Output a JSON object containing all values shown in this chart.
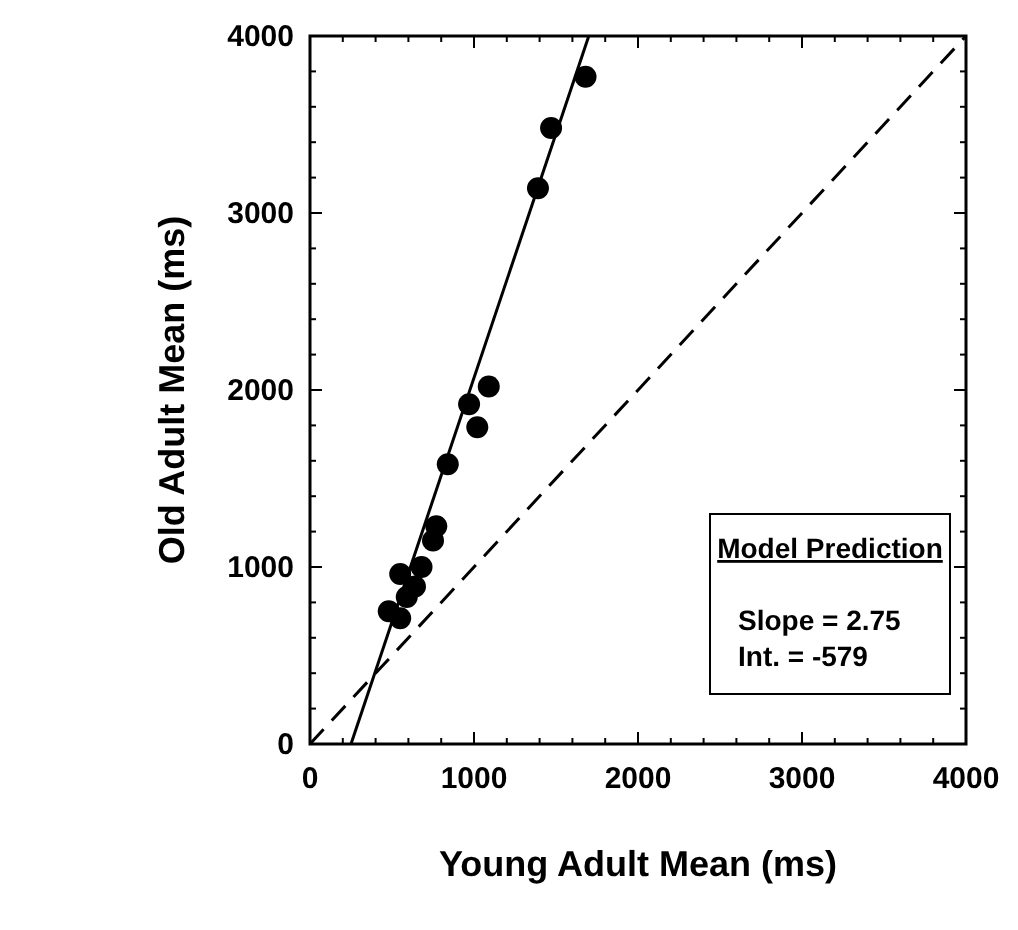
{
  "chart_data": {
    "type": "scatter",
    "xlabel": "Young Adult Mean (ms)",
    "ylabel": "Old Adult Mean (ms)",
    "xlim": [
      0,
      4000
    ],
    "ylim": [
      0,
      4000
    ],
    "xticks": [
      0,
      {
        "value": 200,
        "label": null
      },
      {
        "value": 400,
        "label": null
      },
      {
        "value": 600,
        "label": null
      },
      {
        "value": 800,
        "label": null
      },
      1000,
      {
        "value": 1200,
        "label": null
      },
      {
        "value": 1400,
        "label": null
      },
      {
        "value": 1600,
        "label": null
      },
      {
        "value": 1800,
        "label": null
      },
      2000,
      {
        "value": 2200,
        "label": null
      },
      {
        "value": 2400,
        "label": null
      },
      {
        "value": 2600,
        "label": null
      },
      {
        "value": 2800,
        "label": null
      },
      3000,
      {
        "value": 3200,
        "label": null
      },
      {
        "value": 3400,
        "label": null
      },
      {
        "value": 3600,
        "label": null
      },
      {
        "value": 3800,
        "label": null
      },
      4000
    ],
    "yticks": [
      0,
      {
        "value": 200,
        "label": null
      },
      {
        "value": 400,
        "label": null
      },
      {
        "value": 600,
        "label": null
      },
      {
        "value": 800,
        "label": null
      },
      1000,
      {
        "value": 1200,
        "label": null
      },
      {
        "value": 1400,
        "label": null
      },
      {
        "value": 1600,
        "label": null
      },
      {
        "value": 1800,
        "label": null
      },
      2000,
      {
        "value": 2200,
        "label": null
      },
      {
        "value": 2400,
        "label": null
      },
      {
        "value": 2600,
        "label": null
      },
      {
        "value": 2800,
        "label": null
      },
      3000,
      {
        "value": 3200,
        "label": null
      },
      {
        "value": 3400,
        "label": null
      },
      {
        "value": 3600,
        "label": null
      },
      {
        "value": 3800,
        "label": null
      },
      4000
    ],
    "grid": false,
    "series": [
      {
        "color": "#000000",
        "marker": "circle",
        "x": [
          1680,
          1470,
          1390,
          1090,
          970,
          1020,
          840,
          770,
          750,
          550,
          680,
          640,
          590,
          480,
          550
        ],
        "values": [
          3770,
          3480,
          3140,
          2020,
          1920,
          1790,
          1580,
          1230,
          1150,
          960,
          1000,
          890,
          830,
          750,
          710
        ]
      },
      {
        "type": "line",
        "color": "#000000",
        "line_style": "solid",
        "x": [
          250,
          1700
        ],
        "values": [
          0,
          4000
        ]
      },
      {
        "type": "line",
        "color": "#000000",
        "line_style": "dashed",
        "x": [
          0,
          4000
        ],
        "values": [
          0,
          4000
        ]
      }
    ],
    "annotations": [
      "Model Prediction",
      "Slope = 2.75",
      "Int. = -579"
    ]
  }
}
